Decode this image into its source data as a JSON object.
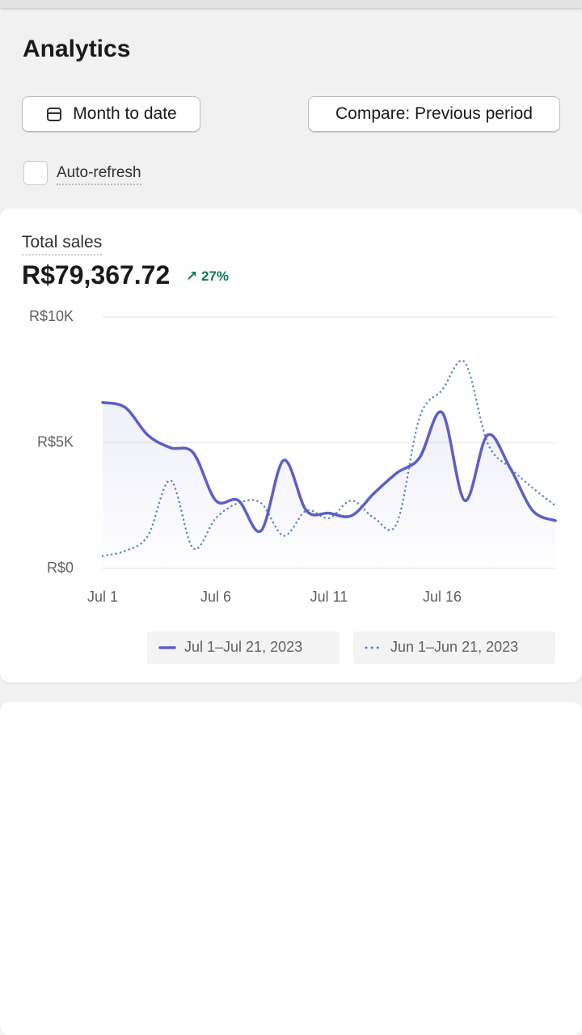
{
  "header": {
    "title": "Analytics"
  },
  "controls": {
    "date_range": "Month to date",
    "compare": "Compare: Previous period",
    "auto_refresh": "Auto-refresh"
  },
  "card": {
    "label": "Total sales",
    "value": "R$79,367.72",
    "change": "27%"
  },
  "chart_data": {
    "type": "line",
    "categories": [
      "Jul 1",
      null,
      null,
      null,
      null,
      "Jul 6",
      null,
      null,
      null,
      null,
      "Jul 11",
      null,
      null,
      null,
      null,
      "Jul 16",
      null,
      null,
      null,
      null,
      null
    ],
    "series": [
      {
        "name": "Jul 1–Jul 21, 2023",
        "color": "#5b5fc7",
        "line_style": "solid",
        "area": true,
        "values": [
          6600,
          6400,
          5300,
          4800,
          4600,
          2700,
          2700,
          1500,
          4300,
          2300,
          2200,
          2100,
          3000,
          3800,
          4400,
          6200,
          2700,
          5300,
          4000,
          2300,
          1900
        ]
      },
      {
        "name": "Jun 1–Jun 21, 2023",
        "color": "#5b87c7",
        "line_style": "dotted",
        "area": false,
        "values": [
          500,
          700,
          1300,
          3500,
          800,
          2000,
          2600,
          2600,
          1300,
          2300,
          2000,
          2700,
          2000,
          1800,
          6000,
          7100,
          8200,
          5000,
          4000,
          3200,
          2500
        ]
      }
    ],
    "ylim": [
      0,
      10000
    ],
    "yticks": [
      {
        "value": 0,
        "label": "R$0"
      },
      {
        "value": 5000,
        "label": "R$5K"
      },
      {
        "value": 10000,
        "label": "R$10K"
      }
    ],
    "grid": true
  }
}
